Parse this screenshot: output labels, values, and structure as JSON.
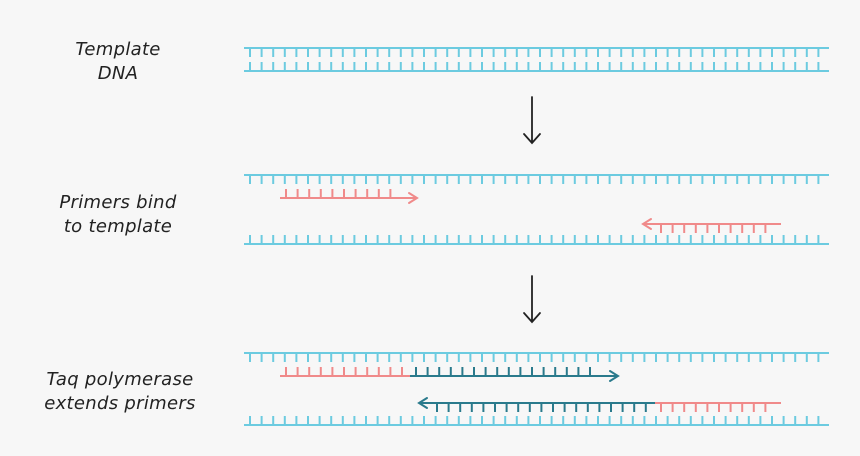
{
  "steps": [
    {
      "label_line1": "Template",
      "label_line2": "DNA"
    },
    {
      "label_line1": "Primers bind",
      "label_line2": "to template"
    },
    {
      "label_line1": "Taq polymerase",
      "label_line2": "extends primers"
    }
  ],
  "colors": {
    "template_strand": "#6ccbe0",
    "primer": "#f08a8a",
    "new_strand": "#2a7a8c",
    "arrow": "#222222",
    "background": "#f7f7f7"
  }
}
